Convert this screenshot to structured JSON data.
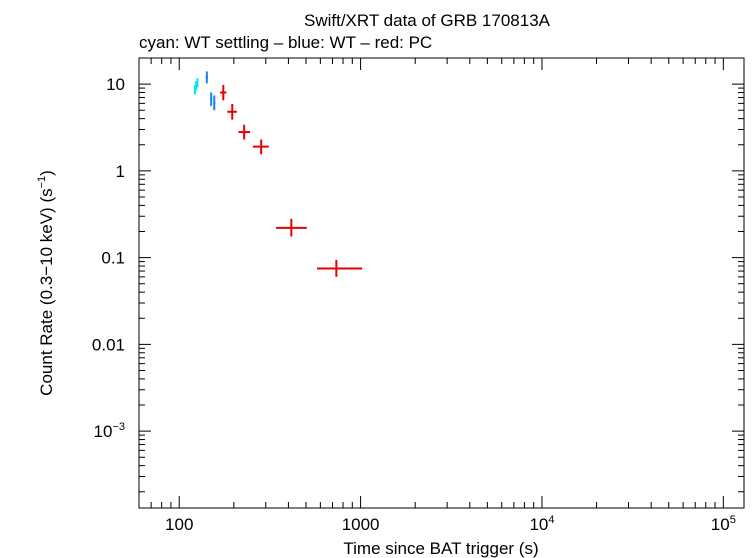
{
  "chart_data": {
    "type": "scatter",
    "title": "Swift/XRT data of GRB 170813A",
    "subtitle": "cyan: WT settling – blue: WT – red: PC",
    "xlabel": "Time since BAT trigger (s)",
    "ylabel_main": "Count Rate (0.3−10 keV) (s",
    "ylabel_exp": "−1",
    "ylabel_tail": ")",
    "xscale": "log",
    "yscale": "log",
    "xlim": [
      60,
      130000
    ],
    "ylim": [
      0.00013,
      20
    ],
    "x_ticks": [
      {
        "value": 100,
        "base": "100",
        "exp": ""
      },
      {
        "value": 1000,
        "base": "1000",
        "exp": ""
      },
      {
        "value": 10000,
        "base": "10",
        "exp": "4"
      },
      {
        "value": 100000,
        "base": "10",
        "exp": "5"
      }
    ],
    "y_ticks": [
      {
        "value": 10,
        "base": "10",
        "exp": ""
      },
      {
        "value": 1,
        "base": "1",
        "exp": ""
      },
      {
        "value": 0.1,
        "base": "0.1",
        "exp": ""
      },
      {
        "value": 0.01,
        "base": "0.01",
        "exp": ""
      },
      {
        "value": 0.001,
        "base": "10",
        "exp": "−3"
      }
    ],
    "series": [
      {
        "name": "WT settling",
        "color": "#00e5ff",
        "points": [
          {
            "x": 122,
            "y": 8.6,
            "xlo": 120.5,
            "xhi": 123.5,
            "ylo": 7.6,
            "yhi": 9.7
          },
          {
            "x": 124,
            "y": 9.6,
            "xlo": 122.5,
            "xhi": 125.5,
            "ylo": 8.5,
            "yhi": 10.8
          },
          {
            "x": 126,
            "y": 10.4,
            "xlo": 124.5,
            "xhi": 127.5,
            "ylo": 9.2,
            "yhi": 11.7
          }
        ]
      },
      {
        "name": "WT",
        "color": "#1e7fff",
        "points": [
          {
            "x": 142,
            "y": 12.0,
            "xlo": 140,
            "xhi": 144,
            "ylo": 10.2,
            "yhi": 14.0
          },
          {
            "x": 150,
            "y": 6.7,
            "xlo": 148,
            "xhi": 152,
            "ylo": 5.6,
            "yhi": 8.0
          },
          {
            "x": 156,
            "y": 6.1,
            "xlo": 154,
            "xhi": 158,
            "ylo": 5.0,
            "yhi": 7.4
          }
        ]
      },
      {
        "name": "PC",
        "color": "#e60000",
        "points": [
          {
            "x": 175,
            "y": 8.0,
            "xlo": 168,
            "xhi": 182,
            "ylo": 6.5,
            "yhi": 9.8
          },
          {
            "x": 196,
            "y": 4.8,
            "xlo": 184,
            "xhi": 208,
            "ylo": 3.9,
            "yhi": 5.9
          },
          {
            "x": 228,
            "y": 2.8,
            "xlo": 212,
            "xhi": 246,
            "ylo": 2.3,
            "yhi": 3.4
          },
          {
            "x": 283,
            "y": 1.9,
            "xlo": 255,
            "xhi": 312,
            "ylo": 1.55,
            "yhi": 2.3
          },
          {
            "x": 415,
            "y": 0.22,
            "xlo": 342,
            "xhi": 505,
            "ylo": 0.175,
            "yhi": 0.28
          },
          {
            "x": 735,
            "y": 0.075,
            "xlo": 575,
            "xhi": 1020,
            "ylo": 0.06,
            "yhi": 0.094
          }
        ]
      }
    ]
  }
}
